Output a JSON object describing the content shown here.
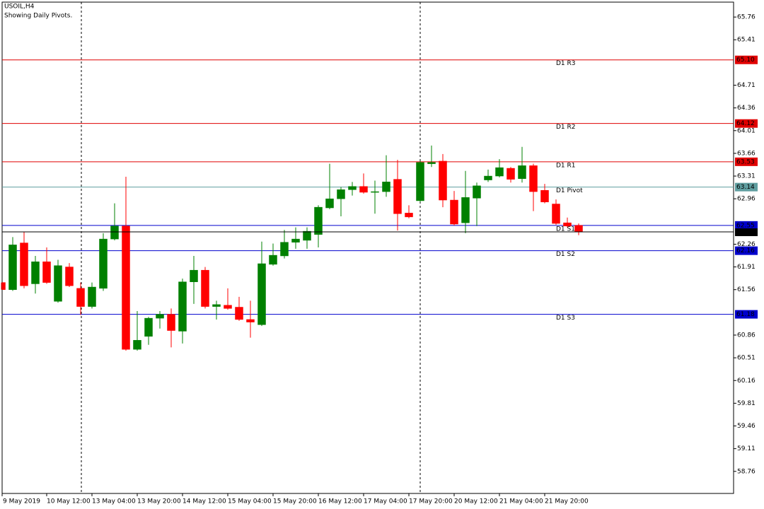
{
  "chart_data": {
    "type": "candlestick",
    "title": "USOIL,H4",
    "subtitle": "Showing Daily Pivots.",
    "categories": [
      "9 May 2019",
      null,
      null,
      null,
      "10 May 12:00",
      null,
      null,
      null,
      "13 May 04:00",
      null,
      null,
      null,
      "13 May 20:00",
      null,
      null,
      null,
      "14 May 12:00",
      null,
      null,
      null,
      "15 May 04:00",
      null,
      null,
      null,
      "15 May 20:00",
      null,
      null,
      null,
      "16 May 12:00",
      null,
      null,
      null,
      "17 May 04:00",
      null,
      null,
      null,
      "17 May 20:00",
      null,
      null,
      null,
      "20 May 12:00",
      null,
      null,
      null,
      "21 May 04:00",
      null,
      null,
      null,
      "21 May 20:00",
      null,
      null,
      null
    ],
    "open": [
      61.67,
      61.56,
      62.28,
      61.65,
      61.99,
      61.38,
      61.91,
      61.58,
      61.3,
      61.58,
      62.34,
      62.54,
      60.64,
      60.84,
      61.12,
      61.18,
      60.92,
      61.68,
      61.86,
      61.3,
      61.32,
      61.29,
      61.1,
      61.02,
      61.95,
      62.08,
      62.29,
      62.32,
      62.41,
      62.82,
      62.96,
      63.1,
      63.15,
      63.06,
      63.07,
      63.26,
      62.74,
      62.93,
      63.5,
      63.54,
      62.94,
      62.59,
      62.97,
      63.25,
      63.31,
      63.43,
      63.27,
      63.47,
      63.09,
      62.88,
      62.59,
      62.55
    ],
    "high": [
      61.67,
      62.37,
      62.45,
      62.08,
      62.21,
      62.02,
      61.97,
      61.67,
      61.67,
      62.43,
      62.89,
      63.3,
      61.23,
      61.14,
      61.23,
      61.27,
      61.73,
      62.08,
      61.91,
      61.39,
      61.58,
      61.45,
      61.39,
      62.3,
      62.27,
      62.48,
      62.52,
      62.52,
      62.86,
      63.5,
      63.14,
      63.22,
      63.35,
      63.24,
      63.63,
      63.56,
      62.86,
      63.54,
      63.78,
      63.65,
      63.08,
      63.39,
      63.21,
      63.41,
      63.57,
      63.45,
      63.76,
      63.5,
      63.19,
      62.95,
      62.67,
      62.58
    ],
    "low": [
      61.56,
      61.54,
      61.58,
      61.5,
      61.65,
      61.36,
      61.6,
      61.17,
      61.27,
      61.54,
      62.32,
      60.62,
      60.62,
      60.71,
      60.96,
      60.67,
      60.73,
      61.34,
      61.27,
      61.1,
      61.25,
      61.08,
      60.82,
      61.0,
      61.93,
      62.04,
      62.19,
      62.19,
      62.21,
      62.8,
      62.69,
      63.01,
      63.04,
      62.73,
      62.99,
      62.47,
      62.66,
      62.91,
      63.45,
      62.83,
      62.55,
      62.43,
      62.54,
      63.22,
      63.29,
      63.21,
      63.21,
      62.77,
      62.89,
      62.56,
      62.52,
      62.4
    ],
    "close": [
      61.56,
      62.25,
      61.62,
      61.99,
      61.67,
      61.93,
      61.62,
      61.3,
      61.6,
      62.34,
      62.54,
      60.64,
      60.78,
      61.12,
      61.18,
      60.93,
      61.68,
      61.86,
      61.3,
      61.33,
      61.27,
      61.1,
      61.06,
      61.96,
      62.09,
      62.29,
      62.34,
      62.46,
      62.83,
      62.96,
      63.1,
      63.15,
      63.06,
      63.07,
      63.22,
      62.73,
      62.68,
      63.52,
      63.52,
      62.94,
      62.57,
      62.98,
      63.16,
      63.31,
      63.44,
      63.26,
      63.47,
      63.07,
      62.91,
      62.58,
      62.54,
      62.45
    ],
    "up_color": "#008000",
    "down_color": "#ff0000",
    "ylim": [
      58.42,
      65.99
    ],
    "yticks": [
      58.76,
      59.11,
      59.46,
      59.81,
      60.16,
      60.51,
      60.86,
      61.56,
      61.91,
      62.26,
      62.96,
      63.31,
      63.66,
      64.01,
      64.36,
      64.71,
      65.41,
      65.76
    ],
    "grid": false,
    "levels": [
      {
        "name": "D1 R3",
        "value": 65.1,
        "label": "65.10",
        "color": "#e00000"
      },
      {
        "name": "D1 R2",
        "value": 64.12,
        "label": "64.12",
        "color": "#e00000"
      },
      {
        "name": "D1 R1",
        "value": 63.53,
        "label": "63.53",
        "color": "#e00000"
      },
      {
        "name": "D1 Pivot",
        "value": 63.14,
        "label": "63.14",
        "color": "#5f9ea0"
      },
      {
        "name": "D1 S1",
        "value": 62.55,
        "label": "62.55",
        "color": "#0000cd"
      },
      {
        "name": "D1 S2",
        "value": 62.16,
        "label": "62.16",
        "color": "#0000cd"
      },
      {
        "name": "D1 S3",
        "value": 61.18,
        "label": "61.18",
        "color": "#0000cd"
      }
    ],
    "bid": 62.45,
    "bid_color": "#000000"
  }
}
